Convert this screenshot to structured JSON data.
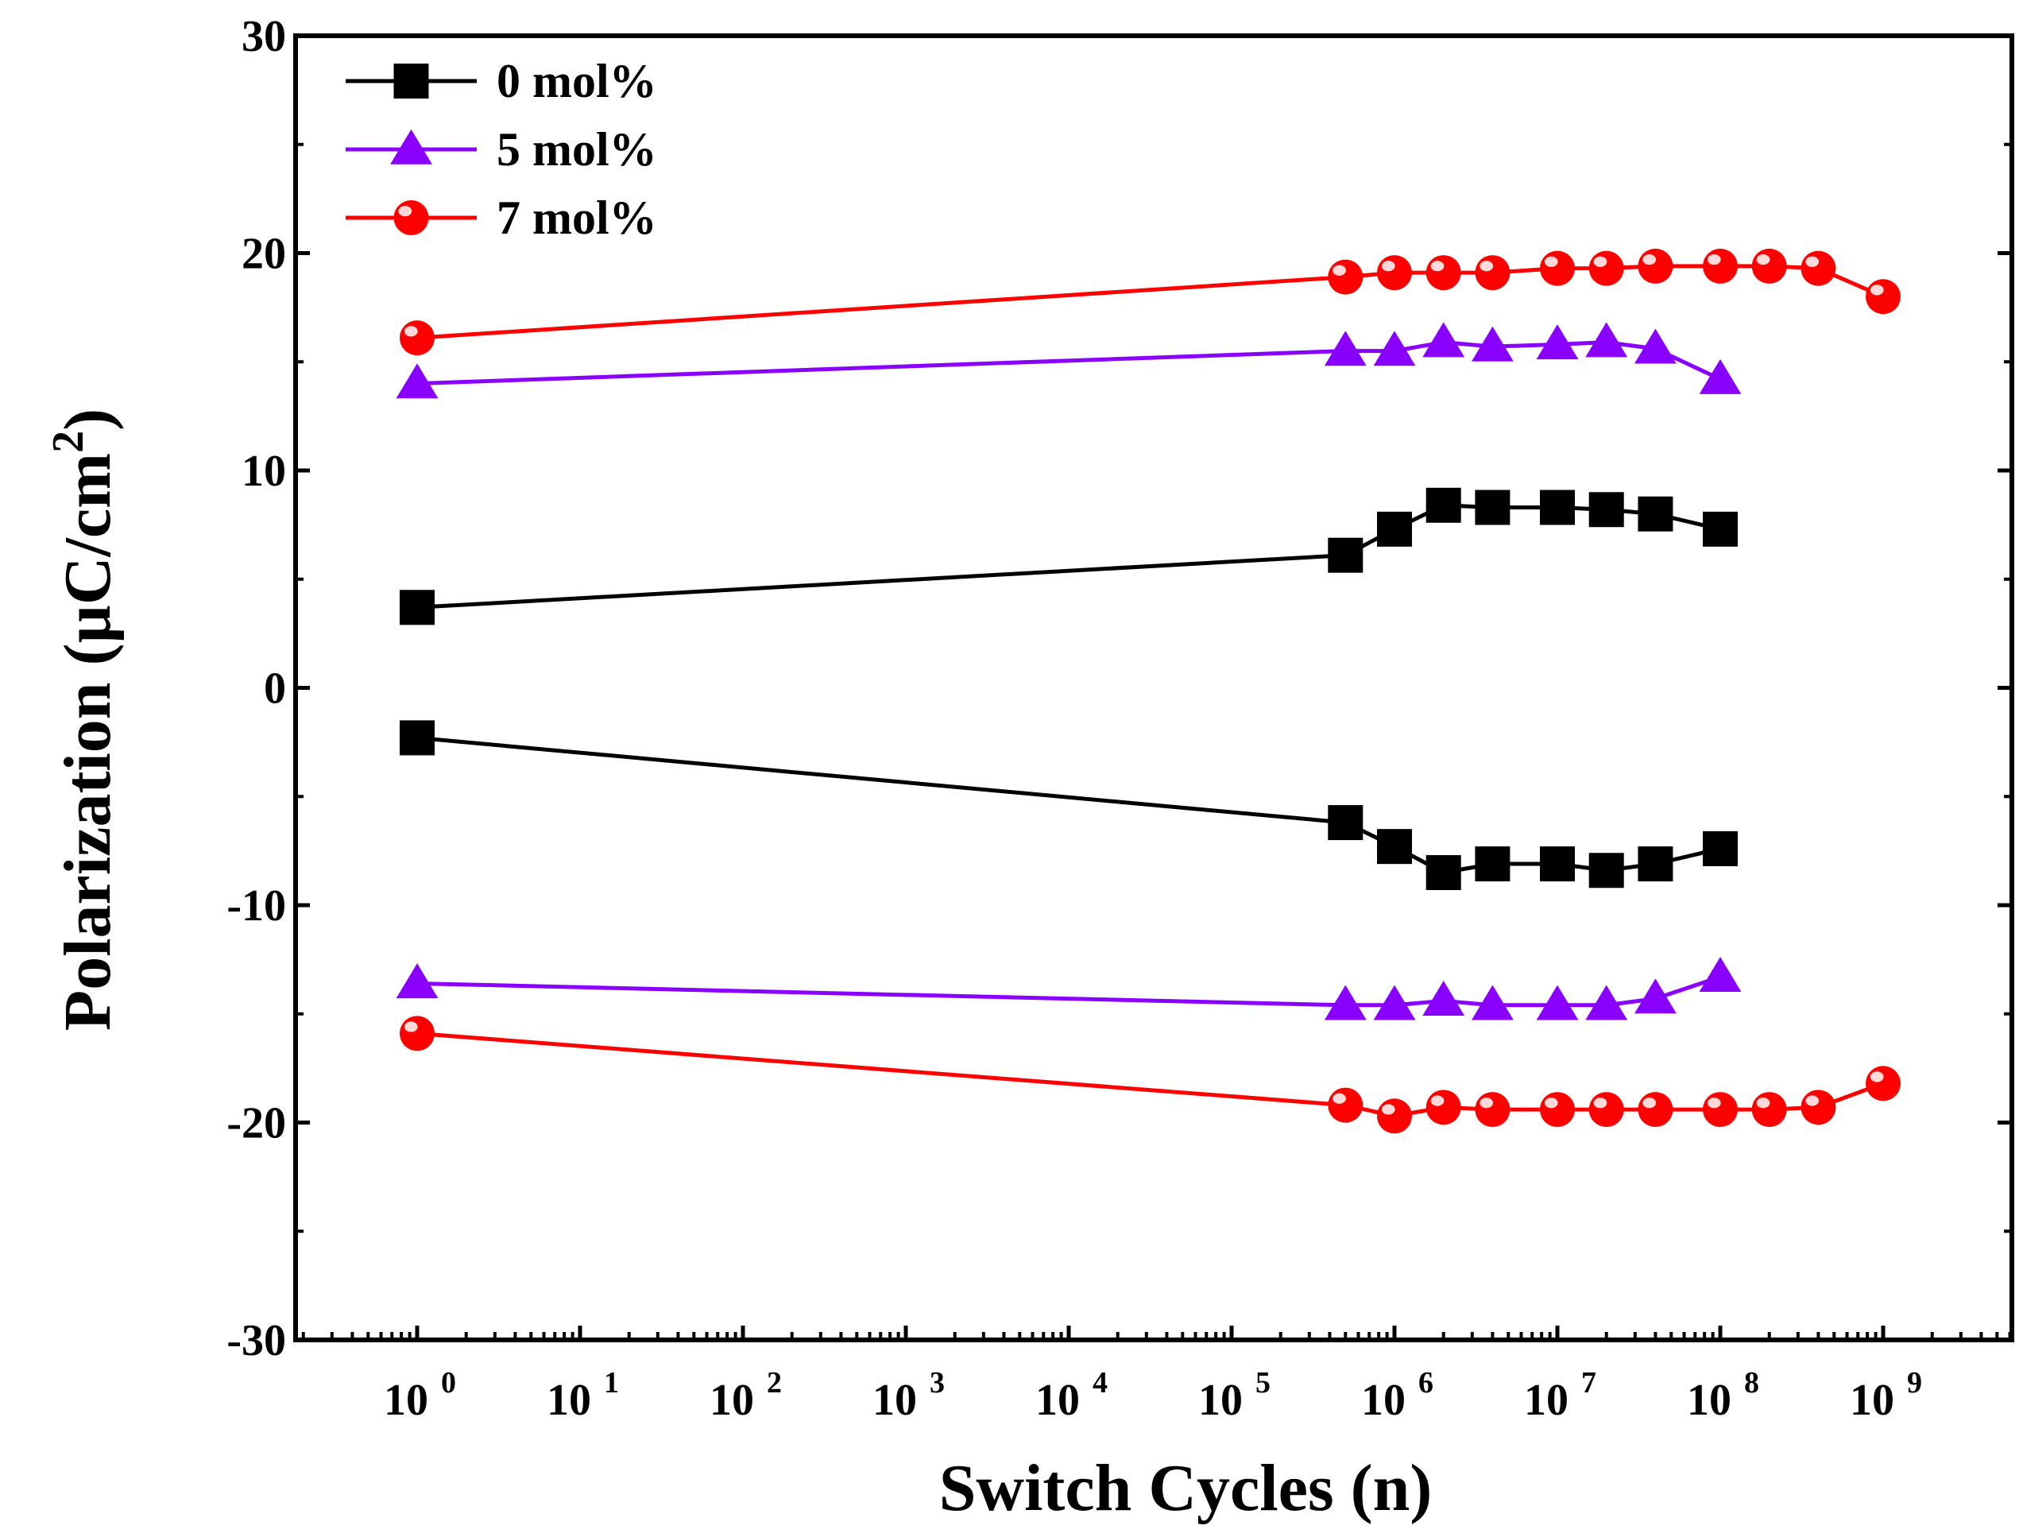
{
  "chart_data": {
    "type": "line",
    "xscale": "log",
    "xlabel": "Switch Cycles (n)",
    "ylabel": "Polarization (µC/cm",
    "ylabel_sup": "2",
    "ylabel_close": ")",
    "ylim": [
      -30,
      30
    ],
    "y_ticks": [
      30,
      20,
      10,
      0,
      -10,
      -20,
      -30
    ],
    "y_tick_labels": [
      "30",
      "20",
      "10",
      "0",
      "-10",
      "-20",
      "-30"
    ],
    "x_exponents": [
      0,
      1,
      2,
      3,
      4,
      5,
      6,
      7,
      8,
      9
    ],
    "x_tick_base": "10",
    "legend_position": "top-left",
    "series": [
      {
        "name": "0 mol%",
        "color": "#000000",
        "marker": "square",
        "x": [
          1,
          500000,
          1000000,
          2000000,
          4000000,
          10000000,
          20000000,
          40000000,
          100000000
        ],
        "y_positive": [
          3.7,
          6.1,
          7.3,
          8.4,
          8.3,
          8.3,
          8.2,
          8.0,
          7.3
        ],
        "y_negative": [
          -2.3,
          -6.2,
          -7.3,
          -8.5,
          -8.1,
          -8.1,
          -8.4,
          -8.1,
          -7.4
        ]
      },
      {
        "name": "5 mol%",
        "color": "#8A00FF",
        "marker": "triangle",
        "x": [
          1,
          500000,
          1000000,
          2000000,
          4000000,
          10000000,
          20000000,
          40000000,
          100000000
        ],
        "y_positive": [
          14.0,
          15.5,
          15.5,
          15.9,
          15.7,
          15.8,
          15.9,
          15.6,
          14.2
        ],
        "y_negative": [
          -13.6,
          -14.6,
          -14.6,
          -14.4,
          -14.6,
          -14.6,
          -14.6,
          -14.3,
          -13.3
        ]
      },
      {
        "name": "7 mol%",
        "color": "#FF0000",
        "marker": "circle",
        "x": [
          1,
          500000,
          1000000,
          2000000,
          4000000,
          10000000,
          20000000,
          40000000,
          100000000,
          200000000,
          400000000,
          1000000000
        ],
        "y_positive": [
          16.1,
          18.9,
          19.1,
          19.1,
          19.1,
          19.3,
          19.3,
          19.4,
          19.4,
          19.4,
          19.3,
          18.0
        ],
        "y_negative": [
          -15.9,
          -19.2,
          -19.7,
          -19.3,
          -19.4,
          -19.4,
          -19.4,
          -19.4,
          -19.4,
          -19.4,
          -19.3,
          -18.2
        ]
      }
    ]
  }
}
